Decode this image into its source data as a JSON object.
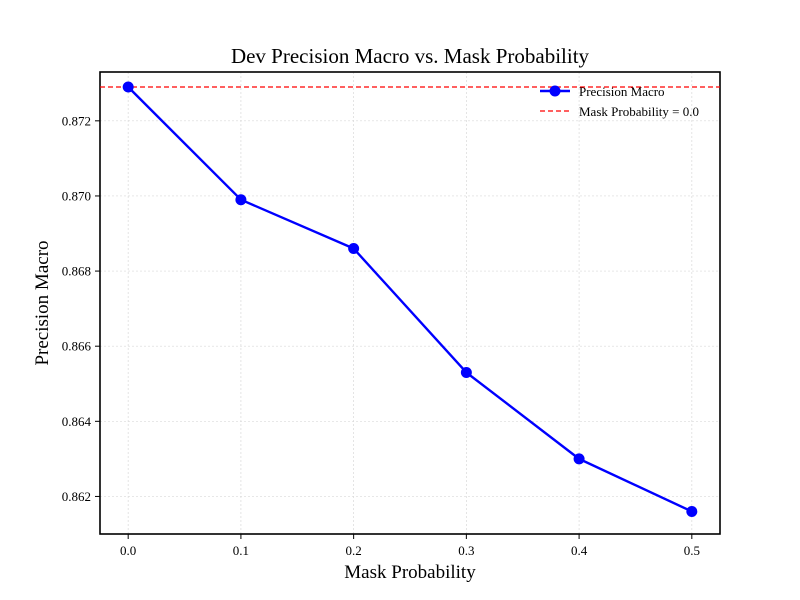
{
  "chart_data": {
    "type": "line",
    "title": "Dev Precision Macro vs. Mask Probability",
    "xlabel": "Mask Probability",
    "ylabel": "Precision Macro",
    "x": [
      0.0,
      0.1,
      0.2,
      0.3,
      0.4,
      0.5
    ],
    "x_tick_labels": [
      "0.0",
      "0.1",
      "0.2",
      "0.3",
      "0.4",
      "0.5"
    ],
    "y_ticks": [
      0.862,
      0.864,
      0.866,
      0.868,
      0.87,
      0.872
    ],
    "y_tick_labels": [
      "0.862",
      "0.864",
      "0.866",
      "0.868",
      "0.870",
      "0.872"
    ],
    "xlim": [
      -0.025,
      0.525
    ],
    "ylim": [
      0.861,
      0.8733
    ],
    "grid": true,
    "legend_position": "top-right",
    "series": [
      {
        "name": "Precision Macro",
        "values": [
          0.8729,
          0.8699,
          0.8686,
          0.8653,
          0.863,
          0.8616
        ],
        "color": "#0000ff",
        "marker": "circle"
      }
    ],
    "reference_line": {
      "name": "Mask Probability = 0.0",
      "y": 0.8729,
      "color": "#ff0000",
      "style": "dashed"
    }
  }
}
